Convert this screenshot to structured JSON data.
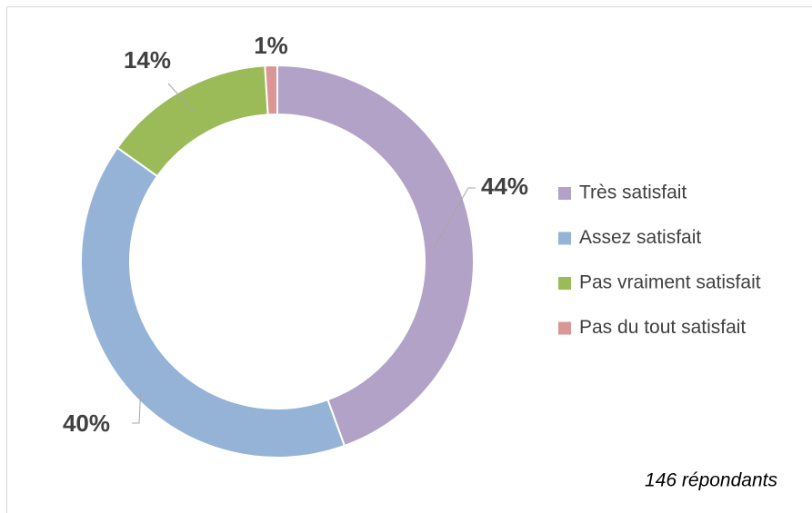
{
  "chart_data": {
    "type": "donut",
    "categories": [
      "Très satisfait",
      "Assez satisfait",
      "Pas vraiment satisfait",
      "Pas du tout satisfait"
    ],
    "values": [
      44,
      40,
      14,
      1
    ],
    "value_labels": [
      "44%",
      "40%",
      "14%",
      "1%"
    ],
    "colors": [
      "#b3a2c7",
      "#95b3d7",
      "#9bbb59",
      "#d99694"
    ],
    "legend": "right",
    "annotation": "146 répondants"
  }
}
